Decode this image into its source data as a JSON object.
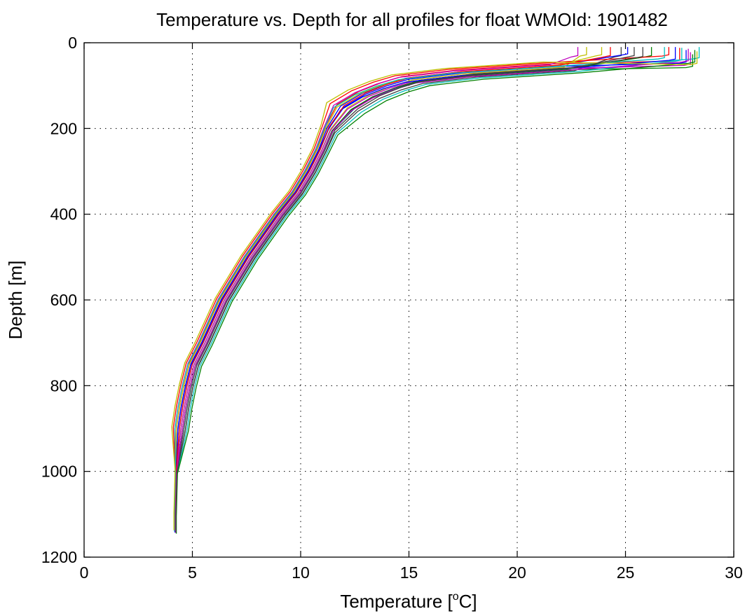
{
  "chart_data": {
    "type": "line",
    "title": "Temperature vs. Depth for all profiles for float WMOId: 1901482",
    "xlabel_main": "Temperature [",
    "xlabel_sup": "o",
    "xlabel_end": "C]",
    "ylabel": "Depth [m]",
    "xlim": [
      0,
      30
    ],
    "ylim": [
      0,
      1200
    ],
    "y_reversed": true,
    "grid": true,
    "x_ticks": [
      0,
      5,
      10,
      15,
      20,
      25,
      30
    ],
    "y_ticks": [
      0,
      200,
      400,
      600,
      800,
      1000,
      1200
    ],
    "colors": [
      "#0000ff",
      "#008000",
      "#ff0000",
      "#00bfbf",
      "#bf00bf",
      "#bfbf00",
      "#404040"
    ],
    "base_profile": {
      "depth": [
        40,
        55,
        70,
        85,
        100,
        120,
        150,
        200,
        250,
        300,
        350,
        400,
        500,
        600,
        700,
        750,
        800,
        850,
        900,
        1000,
        1100,
        1140
      ],
      "temp": [
        27.8,
        22.0,
        17.5,
        15.0,
        14.0,
        13.0,
        12.0,
        11.3,
        10.9,
        10.4,
        9.8,
        9.0,
        7.6,
        6.4,
        5.5,
        5.0,
        4.75,
        4.55,
        4.4,
        4.25,
        4.2,
        4.2
      ]
    },
    "series": [
      {
        "surface_temp": 27.8,
        "mld": 45,
        "temp_offset": 0.0,
        "depth_offset": 0
      },
      {
        "surface_temp": 28.1,
        "mld": 55,
        "temp_offset": 0.2,
        "depth_offset": 8
      },
      {
        "surface_temp": 27.5,
        "mld": 40,
        "temp_offset": -0.2,
        "depth_offset": -6
      },
      {
        "surface_temp": 28.4,
        "mld": 35,
        "temp_offset": 0.3,
        "depth_offset": 4
      },
      {
        "surface_temp": 22.8,
        "mld": 30,
        "temp_offset": -0.3,
        "depth_offset": -4
      },
      {
        "surface_temp": 23.2,
        "mld": 28,
        "temp_offset": 0.1,
        "depth_offset": 2
      },
      {
        "surface_temp": 24.8,
        "mld": 30,
        "temp_offset": 0.4,
        "depth_offset": 10
      },
      {
        "surface_temp": 25.1,
        "mld": 26,
        "temp_offset": -0.1,
        "depth_offset": -2
      },
      {
        "surface_temp": 26.2,
        "mld": 30,
        "temp_offset": 0.2,
        "depth_offset": 6
      },
      {
        "surface_temp": 27.0,
        "mld": 28,
        "temp_offset": -0.4,
        "depth_offset": -8
      },
      {
        "surface_temp": 27.6,
        "mld": 40,
        "temp_offset": 0.5,
        "depth_offset": 12
      },
      {
        "surface_temp": 28.0,
        "mld": 50,
        "temp_offset": 0.1,
        "depth_offset": 5
      },
      {
        "surface_temp": 23.9,
        "mld": 28,
        "temp_offset": -0.2,
        "depth_offset": 0
      },
      {
        "surface_temp": 25.8,
        "mld": 32,
        "temp_offset": 0.3,
        "depth_offset": 3
      },
      {
        "surface_temp": 27.3,
        "mld": 38,
        "temp_offset": -0.1,
        "depth_offset": 7
      },
      {
        "surface_temp": 28.2,
        "mld": 45,
        "temp_offset": 0.6,
        "depth_offset": 15
      },
      {
        "surface_temp": 24.3,
        "mld": 30,
        "temp_offset": 0.0,
        "depth_offset": -3
      },
      {
        "surface_temp": 26.8,
        "mld": 35,
        "temp_offset": -0.3,
        "depth_offset": 1
      },
      {
        "surface_temp": 27.9,
        "mld": 42,
        "temp_offset": 0.2,
        "depth_offset": 9
      },
      {
        "surface_temp": 28.3,
        "mld": 48,
        "temp_offset": -0.5,
        "depth_offset": -10
      },
      {
        "surface_temp": 25.4,
        "mld": 30,
        "temp_offset": 0.4,
        "depth_offset": 4
      }
    ]
  }
}
